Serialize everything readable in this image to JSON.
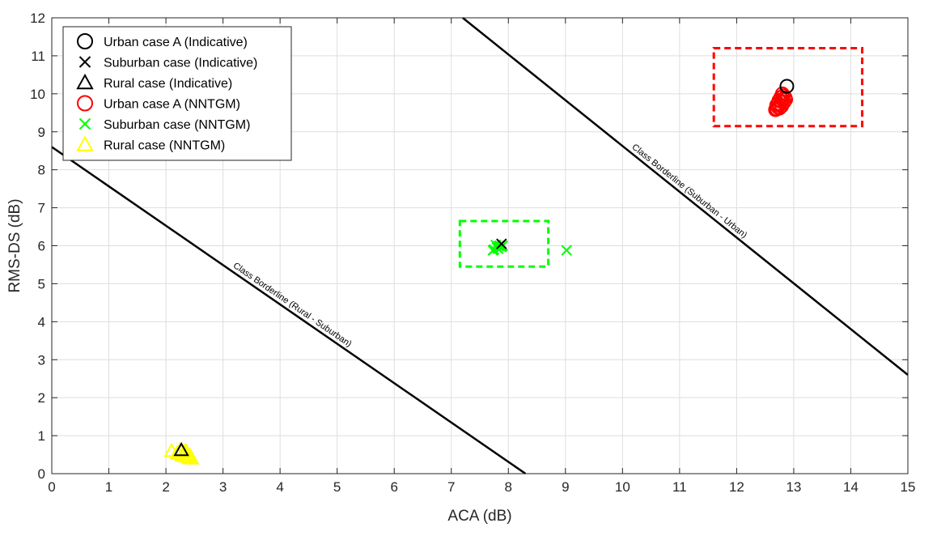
{
  "chart_data": {
    "type": "scatter",
    "title": "",
    "xlabel": "ACA (dB)",
    "ylabel": "RMS-DS (dB)",
    "xlim": [
      0,
      15
    ],
    "ylim": [
      0,
      12
    ],
    "xticks": [
      "0",
      "1",
      "2",
      "3",
      "4",
      "5",
      "6",
      "7",
      "8",
      "9",
      "10",
      "11",
      "12",
      "13",
      "14",
      "15"
    ],
    "yticks": [
      "0",
      "1",
      "2",
      "3",
      "4",
      "5",
      "6",
      "7",
      "8",
      "9",
      "10",
      "11",
      "12"
    ],
    "grid": true,
    "legend_position": "top-left",
    "series": [
      {
        "name": "Urban case A (Indicative)",
        "marker": "circle",
        "color": "#000000",
        "points": [
          [
            12.88,
            10.2
          ]
        ]
      },
      {
        "name": "Suburban case (Indicative)",
        "marker": "x",
        "color": "#000000",
        "points": [
          [
            7.88,
            6.05
          ]
        ]
      },
      {
        "name": "Rural case (Indicative)",
        "marker": "triangle",
        "color": "#000000",
        "points": [
          [
            2.27,
            0.62
          ]
        ]
      },
      {
        "name": "Urban case A (NNTGM)",
        "marker": "circle",
        "color": "#ff0000",
        "points": [
          [
            12.7,
            9.6
          ],
          [
            12.72,
            9.65
          ],
          [
            12.75,
            9.7
          ],
          [
            12.73,
            9.75
          ],
          [
            12.78,
            9.8
          ],
          [
            12.8,
            9.85
          ],
          [
            12.77,
            9.9
          ],
          [
            12.82,
            9.95
          ],
          [
            12.8,
            10.0
          ],
          [
            12.85,
            9.9
          ],
          [
            12.7,
            9.7
          ],
          [
            12.68,
            9.58
          ],
          [
            12.75,
            9.62
          ],
          [
            12.83,
            9.78
          ],
          [
            12.79,
            9.68
          ],
          [
            12.86,
            9.85
          ],
          [
            12.74,
            9.82
          ]
        ]
      },
      {
        "name": "Suburban case (NNTGM)",
        "marker": "x",
        "color": "#00ff00",
        "points": [
          [
            7.75,
            5.9
          ],
          [
            7.8,
            5.95
          ],
          [
            7.85,
            6.0
          ],
          [
            7.78,
            6.02
          ],
          [
            7.82,
            5.92
          ],
          [
            7.88,
            5.97
          ],
          [
            7.73,
            5.88
          ],
          [
            7.9,
            6.0
          ],
          [
            7.83,
            5.99
          ],
          [
            9.02,
            5.88
          ]
        ]
      },
      {
        "name": "Rural case (NNTGM)",
        "marker": "triangle",
        "color": "#ffff00",
        "points": [
          [
            2.1,
            0.6
          ],
          [
            2.2,
            0.55
          ],
          [
            2.3,
            0.5
          ],
          [
            2.35,
            0.45
          ],
          [
            2.4,
            0.42
          ],
          [
            2.45,
            0.4
          ],
          [
            2.25,
            0.62
          ],
          [
            2.32,
            0.58
          ],
          [
            2.38,
            0.5
          ],
          [
            2.28,
            0.48
          ],
          [
            2.42,
            0.48
          ],
          [
            2.22,
            0.52
          ],
          [
            2.35,
            0.6
          ]
        ]
      }
    ],
    "lines": [
      {
        "label": "Class Borderline (Rural - Suburban)",
        "color": "#000000",
        "points": [
          [
            0,
            8.6
          ],
          [
            8.3,
            0
          ]
        ]
      },
      {
        "label": "Class Borderline (Suburban - Urban)",
        "color": "#000000",
        "points": [
          [
            7.2,
            12
          ],
          [
            15,
            2.6
          ]
        ]
      }
    ],
    "boxes": [
      {
        "color": "#ff0000",
        "x": [
          11.6,
          14.2
        ],
        "y": [
          9.15,
          11.2
        ]
      },
      {
        "color": "#00ff00",
        "x": [
          7.15,
          8.7
        ],
        "y": [
          5.45,
          6.65
        ]
      }
    ]
  }
}
